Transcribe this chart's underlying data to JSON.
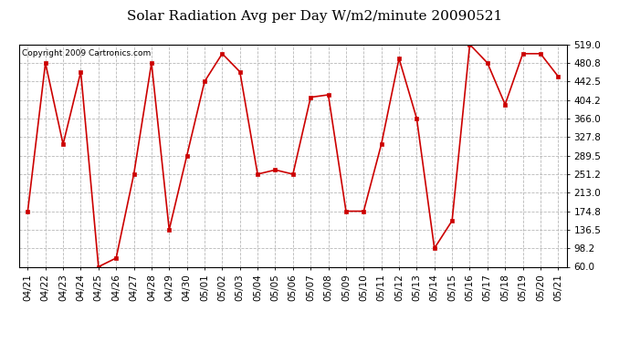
{
  "title": "Solar Radiation Avg per Day W/m2/minute 20090521",
  "copyright": "Copyright 2009 Cartronics.com",
  "labels": [
    "04/21",
    "04/22",
    "04/23",
    "04/24",
    "04/25",
    "04/26",
    "04/27",
    "04/28",
    "04/29",
    "04/30",
    "05/01",
    "05/02",
    "05/03",
    "05/04",
    "05/05",
    "05/06",
    "05/07",
    "05/08",
    "05/09",
    "05/10",
    "05/11",
    "05/12",
    "05/13",
    "05/14",
    "05/15",
    "05/16",
    "05/17",
    "05/18",
    "05/19",
    "05/20",
    "05/21"
  ],
  "values": [
    174.8,
    480.8,
    313.0,
    462.5,
    60.0,
    78.0,
    251.2,
    480.8,
    136.5,
    289.5,
    442.5,
    500.0,
    462.5,
    251.2,
    260.0,
    251.2,
    410.0,
    415.0,
    174.8,
    174.8,
    313.0,
    490.0,
    366.0,
    98.2,
    155.0,
    519.0,
    480.8,
    395.0,
    500.0,
    500.0,
    453.0
  ],
  "ylim": [
    60.0,
    519.0
  ],
  "yticks": [
    60.0,
    98.2,
    136.5,
    174.8,
    213.0,
    251.2,
    289.5,
    327.8,
    366.0,
    404.2,
    442.5,
    480.8,
    519.0
  ],
  "line_color": "#cc0000",
  "marker_color": "#cc0000",
  "bg_color": "#ffffff",
  "grid_color": "#b0b0b0",
  "title_fontsize": 11,
  "tick_fontsize": 7.5,
  "copyright_fontsize": 6.5
}
